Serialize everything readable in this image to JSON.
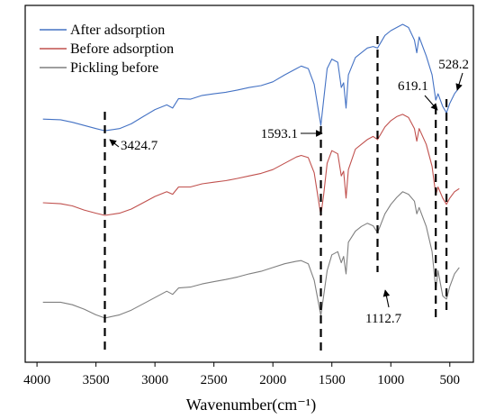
{
  "chart_data": {
    "type": "line",
    "title": "",
    "xlabel": "Wavenumber(cm⁻¹)",
    "ylabel": "",
    "xlim": [
      4100,
      300
    ],
    "x_reversed": true,
    "x_ticks": [
      4000,
      3500,
      3000,
      2500,
      2000,
      1500,
      1000,
      500
    ],
    "legend_position": "top-left",
    "grid": false,
    "series": [
      {
        "name": "After adsorption",
        "color": "#4472C4",
        "points": [
          [
            3950,
            0.72
          ],
          [
            3800,
            0.718
          ],
          [
            3700,
            0.71
          ],
          [
            3600,
            0.7
          ],
          [
            3500,
            0.69
          ],
          [
            3424.7,
            0.683
          ],
          [
            3300,
            0.69
          ],
          [
            3200,
            0.705
          ],
          [
            3100,
            0.728
          ],
          [
            3000,
            0.75
          ],
          [
            2900,
            0.765
          ],
          [
            2850,
            0.755
          ],
          [
            2800,
            0.785
          ],
          [
            2700,
            0.783
          ],
          [
            2600,
            0.795
          ],
          [
            2500,
            0.8
          ],
          [
            2400,
            0.805
          ],
          [
            2300,
            0.812
          ],
          [
            2200,
            0.82
          ],
          [
            2100,
            0.826
          ],
          [
            2000,
            0.838
          ],
          [
            1900,
            0.86
          ],
          [
            1800,
            0.88
          ],
          [
            1760,
            0.888
          ],
          [
            1700,
            0.88
          ],
          [
            1650,
            0.83
          ],
          [
            1593.1,
            0.7
          ],
          [
            1570,
            0.78
          ],
          [
            1540,
            0.88
          ],
          [
            1500,
            0.91
          ],
          [
            1450,
            0.9
          ],
          [
            1420,
            0.82
          ],
          [
            1400,
            0.835
          ],
          [
            1380,
            0.755
          ],
          [
            1360,
            0.86
          ],
          [
            1300,
            0.915
          ],
          [
            1250,
            0.93
          ],
          [
            1200,
            0.945
          ],
          [
            1150,
            0.95
          ],
          [
            1112.7,
            0.945
          ],
          [
            1050,
            0.985
          ],
          [
            1000,
            1.0
          ],
          [
            950,
            1.01
          ],
          [
            900,
            1.02
          ],
          [
            850,
            1.01
          ],
          [
            800,
            0.97
          ],
          [
            780,
            0.93
          ],
          [
            760,
            0.98
          ],
          [
            700,
            0.92
          ],
          [
            650,
            0.86
          ],
          [
            619.1,
            0.78
          ],
          [
            600,
            0.8
          ],
          [
            560,
            0.76
          ],
          [
            528.2,
            0.74
          ],
          [
            500,
            0.77
          ],
          [
            460,
            0.8
          ],
          [
            420,
            0.82
          ]
        ]
      },
      {
        "name": "Before adsorption",
        "color": "#C0504D",
        "points": [
          [
            3950,
            0.455
          ],
          [
            3800,
            0.452
          ],
          [
            3700,
            0.445
          ],
          [
            3600,
            0.432
          ],
          [
            3500,
            0.422
          ],
          [
            3424.7,
            0.415
          ],
          [
            3300,
            0.422
          ],
          [
            3200,
            0.435
          ],
          [
            3100,
            0.455
          ],
          [
            3000,
            0.475
          ],
          [
            2900,
            0.49
          ],
          [
            2850,
            0.482
          ],
          [
            2800,
            0.505
          ],
          [
            2700,
            0.505
          ],
          [
            2600,
            0.515
          ],
          [
            2500,
            0.52
          ],
          [
            2400,
            0.525
          ],
          [
            2300,
            0.532
          ],
          [
            2200,
            0.54
          ],
          [
            2100,
            0.548
          ],
          [
            2000,
            0.56
          ],
          [
            1900,
            0.58
          ],
          [
            1800,
            0.6
          ],
          [
            1760,
            0.605
          ],
          [
            1700,
            0.598
          ],
          [
            1650,
            0.55
          ],
          [
            1593.1,
            0.415
          ],
          [
            1570,
            0.48
          ],
          [
            1540,
            0.58
          ],
          [
            1500,
            0.62
          ],
          [
            1450,
            0.61
          ],
          [
            1420,
            0.54
          ],
          [
            1400,
            0.555
          ],
          [
            1380,
            0.47
          ],
          [
            1360,
            0.56
          ],
          [
            1300,
            0.625
          ],
          [
            1250,
            0.64
          ],
          [
            1200,
            0.655
          ],
          [
            1150,
            0.665
          ],
          [
            1112.7,
            0.655
          ],
          [
            1050,
            0.695
          ],
          [
            1000,
            0.715
          ],
          [
            950,
            0.728
          ],
          [
            900,
            0.735
          ],
          [
            850,
            0.725
          ],
          [
            800,
            0.69
          ],
          [
            780,
            0.65
          ],
          [
            760,
            0.69
          ],
          [
            700,
            0.64
          ],
          [
            650,
            0.57
          ],
          [
            619.1,
            0.48
          ],
          [
            600,
            0.505
          ],
          [
            560,
            0.47
          ],
          [
            528.2,
            0.45
          ],
          [
            500,
            0.47
          ],
          [
            460,
            0.49
          ],
          [
            420,
            0.5
          ]
        ]
      },
      {
        "name": "Pickling before",
        "color": "#7F7F7F",
        "points": [
          [
            3950,
            0.14
          ],
          [
            3800,
            0.14
          ],
          [
            3700,
            0.132
          ],
          [
            3600,
            0.118
          ],
          [
            3500,
            0.1
          ],
          [
            3424.7,
            0.09
          ],
          [
            3300,
            0.1
          ],
          [
            3200,
            0.115
          ],
          [
            3100,
            0.135
          ],
          [
            3000,
            0.155
          ],
          [
            2900,
            0.175
          ],
          [
            2850,
            0.165
          ],
          [
            2800,
            0.185
          ],
          [
            2700,
            0.188
          ],
          [
            2600,
            0.198
          ],
          [
            2500,
            0.205
          ],
          [
            2400,
            0.212
          ],
          [
            2300,
            0.22
          ],
          [
            2200,
            0.23
          ],
          [
            2100,
            0.238
          ],
          [
            2000,
            0.25
          ],
          [
            1900,
            0.262
          ],
          [
            1800,
            0.27
          ],
          [
            1760,
            0.272
          ],
          [
            1700,
            0.262
          ],
          [
            1650,
            0.21
          ],
          [
            1593.1,
            0.098
          ],
          [
            1570,
            0.16
          ],
          [
            1540,
            0.24
          ],
          [
            1500,
            0.29
          ],
          [
            1450,
            0.3
          ],
          [
            1420,
            0.265
          ],
          [
            1400,
            0.285
          ],
          [
            1380,
            0.23
          ],
          [
            1360,
            0.33
          ],
          [
            1300,
            0.365
          ],
          [
            1250,
            0.38
          ],
          [
            1200,
            0.39
          ],
          [
            1150,
            0.382
          ],
          [
            1112.7,
            0.36
          ],
          [
            1050,
            0.42
          ],
          [
            1000,
            0.45
          ],
          [
            950,
            0.472
          ],
          [
            900,
            0.49
          ],
          [
            850,
            0.482
          ],
          [
            800,
            0.46
          ],
          [
            780,
            0.42
          ],
          [
            760,
            0.44
          ],
          [
            700,
            0.38
          ],
          [
            650,
            0.3
          ],
          [
            619.1,
            0.18
          ],
          [
            600,
            0.24
          ],
          [
            560,
            0.16
          ],
          [
            528.2,
            0.15
          ],
          [
            500,
            0.19
          ],
          [
            460,
            0.23
          ],
          [
            420,
            0.25
          ]
        ]
      }
    ],
    "reference_lines": [
      {
        "x": 3424.7,
        "label": "3424.7"
      },
      {
        "x": 1593.1,
        "label": "1593.1"
      },
      {
        "x": 1112.7,
        "label": "1112.7"
      },
      {
        "x": 619.1,
        "label": "619.1"
      },
      {
        "x": 528.2,
        "label": "528.2"
      }
    ]
  }
}
